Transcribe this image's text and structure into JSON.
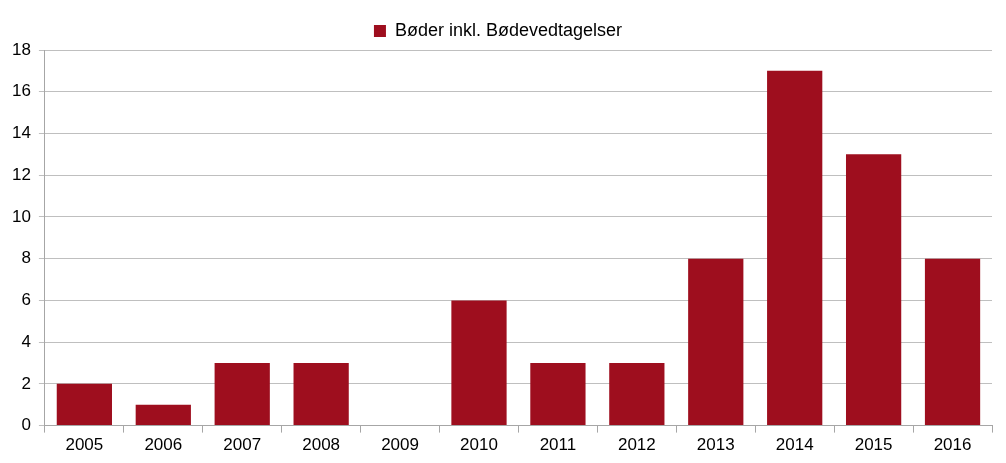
{
  "chart_data": {
    "type": "bar",
    "categories": [
      "2005",
      "2006",
      "2007",
      "2008",
      "2009",
      "2010",
      "2011",
      "2012",
      "2013",
      "2014",
      "2015",
      "2016"
    ],
    "series": [
      {
        "name": "Bøder inkl. Bødevedtagelser",
        "color": "#9e0e1e",
        "values": [
          2,
          1,
          3,
          3,
          0,
          6,
          3,
          3,
          8,
          17,
          13,
          8
        ]
      }
    ],
    "ylim": [
      0,
      18
    ],
    "yticks": [
      0,
      2,
      4,
      6,
      8,
      10,
      12,
      14,
      16,
      18
    ],
    "grid": "y",
    "legend": "top"
  }
}
